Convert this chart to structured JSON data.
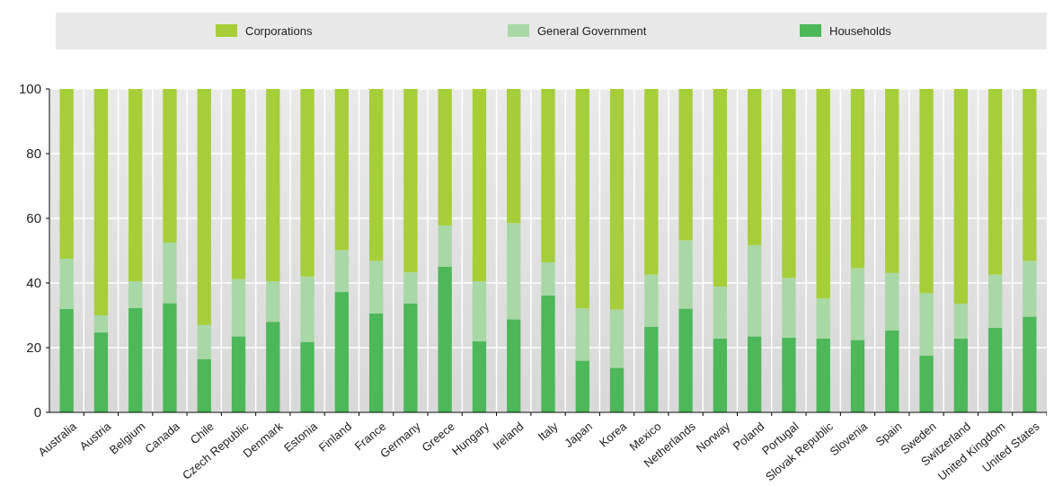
{
  "chart_data": {
    "type": "bar",
    "stacked": true,
    "categories": [
      "Australia",
      "Austria",
      "Belgium",
      "Canada",
      "Chile",
      "Czech Republic",
      "Denmark",
      "Estonia",
      "Finland",
      "France",
      "Germany",
      "Greece",
      "Hungary",
      "Ireland",
      "Italy",
      "Japan",
      "Korea",
      "Mexico",
      "Netherlands",
      "Norway",
      "Poland",
      "Portugal",
      "Slovak Republic",
      "Slovenia",
      "Spain",
      "Sweden",
      "Switzerland",
      "United Kingdom",
      "United States"
    ],
    "series": [
      {
        "name": "Households",
        "color": "#4cb858",
        "values": [
          32,
          24.7,
          32.3,
          33.8,
          16.5,
          23.5,
          28,
          21.8,
          37.2,
          30.6,
          33.7,
          45,
          22,
          28.8,
          36.2,
          16,
          13.8,
          26.5,
          32.1,
          22.8,
          23.5,
          23.1,
          22.8,
          22.4,
          25.4,
          17.6,
          22.8,
          26.2,
          29.6
        ]
      },
      {
        "name": "General Government",
        "color": "#a8d8a5",
        "values": [
          15.5,
          5.3,
          8.2,
          18.7,
          10.5,
          17.7,
          12.5,
          20.2,
          13,
          16.2,
          9.6,
          12.8,
          18.5,
          29.7,
          10.2,
          16.2,
          18,
          16.1,
          21.1,
          16.1,
          28.2,
          18.4,
          12.4,
          22.2,
          17.7,
          19.2,
          10.8,
          16.4,
          17.2
        ]
      },
      {
        "name": "Corporations",
        "color": "#a6ce39",
        "values": [
          52.5,
          70,
          59.5,
          47.5,
          73,
          58.8,
          59.5,
          58,
          49.8,
          53.2,
          56.7,
          42.2,
          59.5,
          41.5,
          53.6,
          67.8,
          68.2,
          57.4,
          46.8,
          61.1,
          48.3,
          58.5,
          64.8,
          55.4,
          56.9,
          63.2,
          66.4,
          57.4,
          53.2
        ]
      }
    ],
    "ylim": [
      0,
      100
    ],
    "yticks": [
      0,
      20,
      40,
      60,
      80,
      100
    ],
    "grid": true,
    "legend": "top"
  }
}
